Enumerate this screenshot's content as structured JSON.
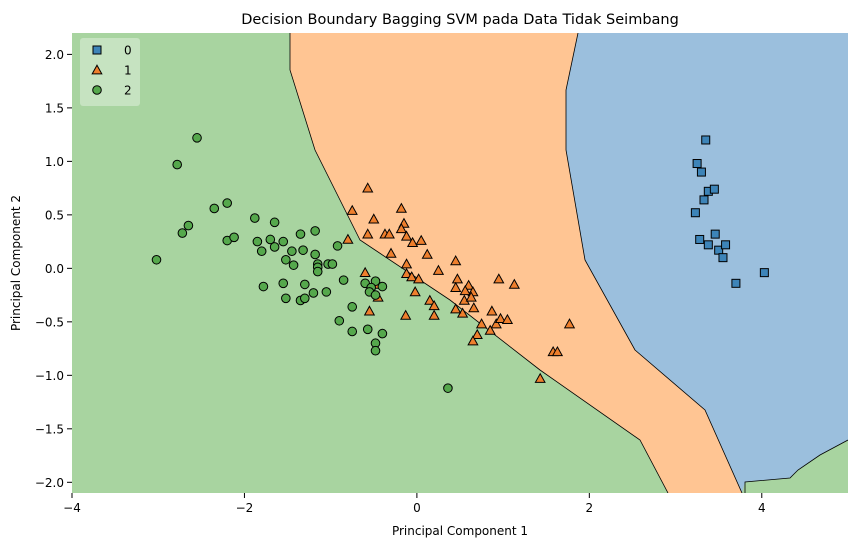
{
  "chart_data": {
    "type": "scatter",
    "title": "Decision Boundary Bagging SVM pada Data Tidak Seimbang",
    "xlabel": "Principal Component 1",
    "ylabel": "Principal Component 2",
    "xlim": [
      -4,
      5
    ],
    "ylim": [
      -2.1,
      2.2
    ],
    "xticks": [
      -4,
      -2,
      0,
      2,
      4
    ],
    "xtick_labels": [
      "−4",
      "−2",
      "0",
      "2",
      "4"
    ],
    "yticks": [
      -2.0,
      -1.5,
      -1.0,
      -0.5,
      0.0,
      0.5,
      1.0,
      1.5,
      2.0
    ],
    "ytick_labels": [
      "−2.0",
      "−1.5",
      "−1.0",
      "−0.5",
      "0.0",
      "0.5",
      "1.0",
      "1.5",
      "2.0"
    ],
    "grid": false,
    "legend_position": "top-left",
    "region_colors": {
      "0": "#9bbfdd",
      "1": "#ffc593",
      "2": "#a8d4a0"
    },
    "series": [
      {
        "name": "0",
        "marker": "square",
        "color": "#3d84b8",
        "points": [
          [
            3.35,
            1.2
          ],
          [
            3.25,
            0.98
          ],
          [
            3.3,
            0.9
          ],
          [
            3.38,
            0.72
          ],
          [
            3.45,
            0.74
          ],
          [
            3.33,
            0.64
          ],
          [
            3.23,
            0.52
          ],
          [
            3.28,
            0.27
          ],
          [
            3.38,
            0.22
          ],
          [
            3.46,
            0.32
          ],
          [
            3.5,
            0.17
          ],
          [
            3.58,
            0.22
          ],
          [
            3.55,
            0.1
          ],
          [
            4.03,
            -0.04
          ],
          [
            3.7,
            -0.14
          ]
        ]
      },
      {
        "name": "1",
        "marker": "triangle",
        "color": "#ee7f2d",
        "points": [
          [
            -0.57,
            0.75
          ],
          [
            -0.75,
            0.54
          ],
          [
            -0.5,
            0.46
          ],
          [
            -0.57,
            0.32
          ],
          [
            -0.37,
            0.32
          ],
          [
            -0.32,
            0.32
          ],
          [
            -0.18,
            0.56
          ],
          [
            -0.15,
            0.42
          ],
          [
            -0.18,
            0.37
          ],
          [
            -0.12,
            0.3
          ],
          [
            -0.05,
            0.24
          ],
          [
            0.05,
            0.26
          ],
          [
            -0.8,
            0.27
          ],
          [
            -0.3,
            0.14
          ],
          [
            0.12,
            0.13
          ],
          [
            0.45,
            0.07
          ],
          [
            0.25,
            -0.02
          ],
          [
            -0.12,
            -0.05
          ],
          [
            -0.06,
            -0.08
          ],
          [
            0.02,
            -0.1
          ],
          [
            -0.12,
            0.04
          ],
          [
            -0.6,
            -0.04
          ],
          [
            0.47,
            -0.1
          ],
          [
            0.6,
            -0.16
          ],
          [
            0.65,
            -0.22
          ],
          [
            0.45,
            -0.18
          ],
          [
            0.56,
            -0.21
          ],
          [
            0.95,
            -0.1
          ],
          [
            1.13,
            -0.15
          ],
          [
            -0.46,
            -0.15
          ],
          [
            -0.02,
            -0.22
          ],
          [
            0.15,
            -0.3
          ],
          [
            0.2,
            -0.35
          ],
          [
            0.55,
            -0.3
          ],
          [
            0.63,
            -0.27
          ],
          [
            0.53,
            -0.42
          ],
          [
            0.66,
            -0.37
          ],
          [
            0.45,
            -0.38
          ],
          [
            0.2,
            -0.44
          ],
          [
            -0.55,
            -0.4
          ],
          [
            -0.45,
            -0.27
          ],
          [
            -0.13,
            -0.44
          ],
          [
            0.87,
            -0.4
          ],
          [
            0.75,
            -0.52
          ],
          [
            0.92,
            -0.52
          ],
          [
            0.85,
            -0.58
          ],
          [
            0.7,
            -0.62
          ],
          [
            0.97,
            -0.47
          ],
          [
            1.05,
            -0.48
          ],
          [
            1.77,
            -0.52
          ],
          [
            0.65,
            -0.68
          ],
          [
            1.58,
            -0.78
          ],
          [
            1.63,
            -0.78
          ],
          [
            1.43,
            -1.03
          ]
        ]
      },
      {
        "name": "2",
        "marker": "circle",
        "color": "#55a84c",
        "points": [
          [
            -2.55,
            1.22
          ],
          [
            -2.78,
            0.97
          ],
          [
            -2.35,
            0.56
          ],
          [
            -2.2,
            0.61
          ],
          [
            -2.65,
            0.4
          ],
          [
            -2.72,
            0.33
          ],
          [
            -2.2,
            0.26
          ],
          [
            -2.12,
            0.29
          ],
          [
            -1.88,
            0.47
          ],
          [
            -1.65,
            0.43
          ],
          [
            -1.85,
            0.25
          ],
          [
            -1.7,
            0.27
          ],
          [
            -1.55,
            0.25
          ],
          [
            -1.35,
            0.32
          ],
          [
            -1.18,
            0.35
          ],
          [
            -0.92,
            0.21
          ],
          [
            -1.8,
            0.16
          ],
          [
            -1.65,
            0.2
          ],
          [
            -1.45,
            0.16
          ],
          [
            -1.32,
            0.17
          ],
          [
            -1.18,
            0.13
          ],
          [
            -1.03,
            0.04
          ],
          [
            -3.02,
            0.08
          ],
          [
            -1.52,
            0.08
          ],
          [
            -1.43,
            0.03
          ],
          [
            -1.15,
            0.04
          ],
          [
            -1.15,
            0.01
          ],
          [
            -0.98,
            0.04
          ],
          [
            -1.15,
            -0.03
          ],
          [
            -0.85,
            -0.11
          ],
          [
            -1.55,
            -0.14
          ],
          [
            -1.78,
            -0.17
          ],
          [
            -1.3,
            -0.15
          ],
          [
            -0.6,
            -0.14
          ],
          [
            -0.48,
            -0.12
          ],
          [
            -0.4,
            -0.17
          ],
          [
            -0.53,
            -0.18
          ],
          [
            -1.2,
            -0.23
          ],
          [
            -1.05,
            -0.22
          ],
          [
            -0.55,
            -0.22
          ],
          [
            -0.48,
            -0.25
          ],
          [
            -1.52,
            -0.28
          ],
          [
            -1.35,
            -0.3
          ],
          [
            -1.3,
            -0.28
          ],
          [
            -0.75,
            -0.36
          ],
          [
            -0.9,
            -0.49
          ],
          [
            -0.57,
            -0.57
          ],
          [
            -0.75,
            -0.59
          ],
          [
            -0.4,
            -0.61
          ],
          [
            -0.48,
            -0.7
          ],
          [
            -0.48,
            -0.77
          ],
          [
            0.36,
            -1.12
          ]
        ]
      }
    ]
  }
}
